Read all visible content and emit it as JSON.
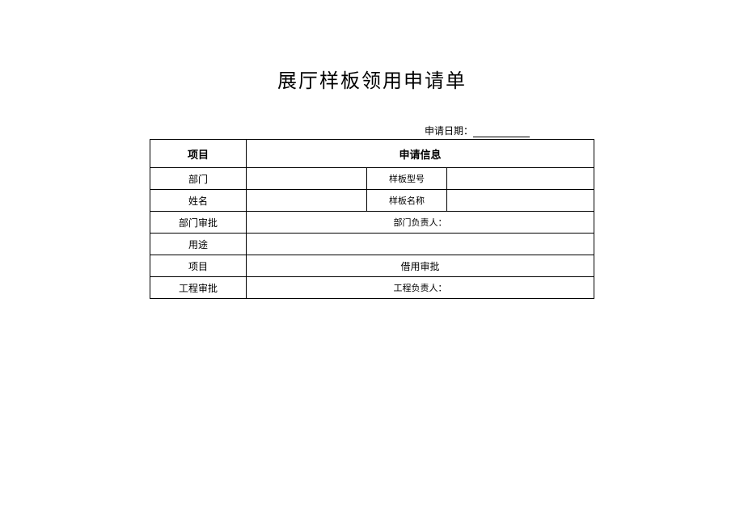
{
  "title": "展厅样板领用申请单",
  "date_label": "申请日期：",
  "table": {
    "header": {
      "col1": "项目",
      "col2": "申请信息"
    },
    "rows": {
      "r1": {
        "label": "部门",
        "midlabel": "样板型号"
      },
      "r2": {
        "label": "姓名",
        "midlabel": "样板名称"
      },
      "r3": {
        "label": "部门审批",
        "rtext": "部门负责人："
      },
      "r4": {
        "label": "用途"
      },
      "r5": {
        "label": "项目",
        "rtext": "借用审批"
      },
      "r6": {
        "label": "工程审批",
        "rtext": "工程负责人："
      }
    }
  }
}
